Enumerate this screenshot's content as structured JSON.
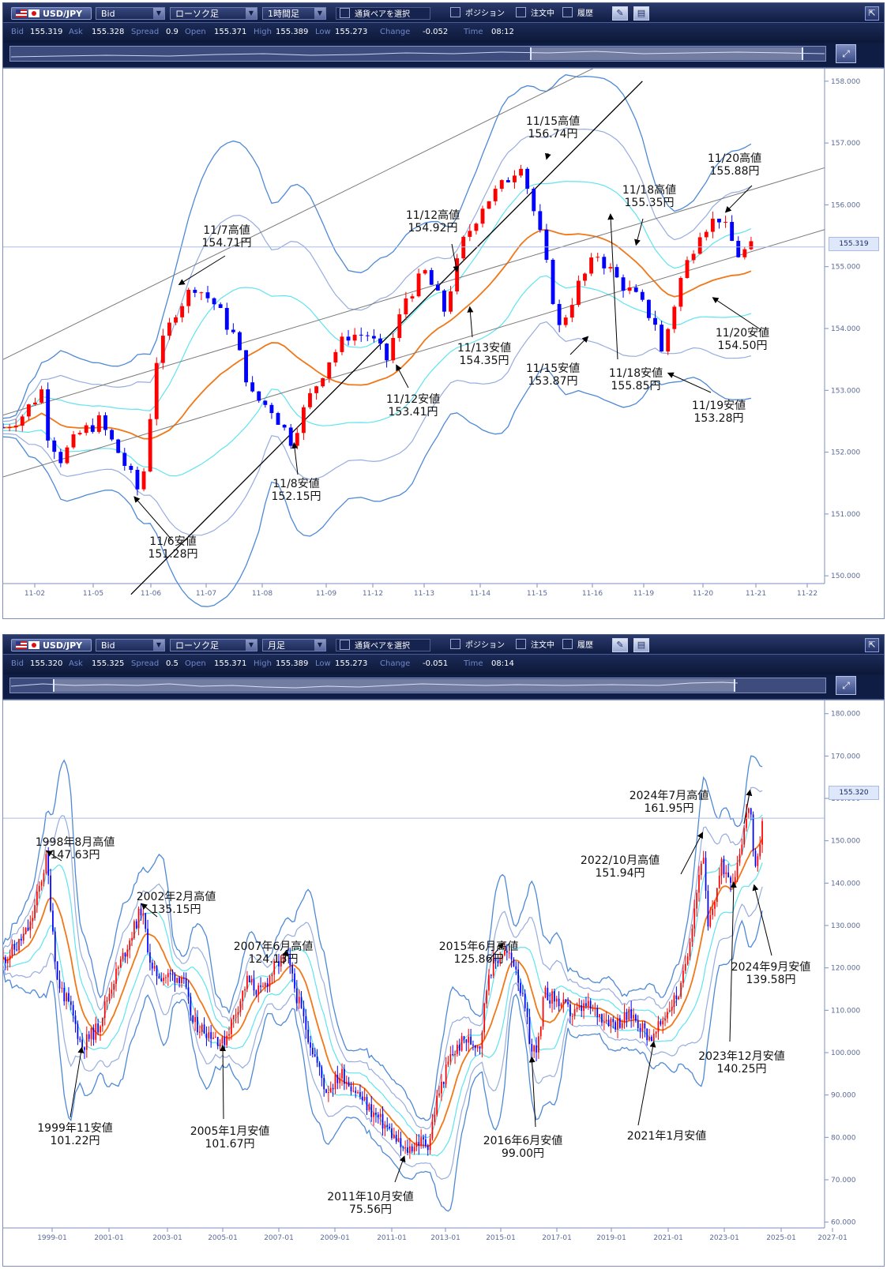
{
  "colors": {
    "toolbar_bg": "#0f1c44",
    "label": "#6f86c9",
    "value": "#ffffff",
    "candle_up": "#ff0000",
    "candle_down": "#0000ff",
    "ma": "#f07818",
    "band1": "#5ee4f0",
    "band2": "#97acdf",
    "band3": "#4e89d6",
    "trendline": "#000000",
    "channel": "#7a7a7a",
    "price_line": "#a7bde8"
  },
  "icons": {
    "pair_flag": "us-flag-icon",
    "quote_flag": "jp-flag-icon",
    "dropdown": "chevron-down-icon",
    "draw": "draw-line-icon",
    "layout": "window-layout-icon",
    "collapse": "collapse-arrow-icon",
    "zoom": "zoom-arrows-icon"
  },
  "panels": [
    {
      "toolbar": {
        "pair": "USD/JPY",
        "side": "Bid",
        "chart_type": "ローソク足",
        "timeframe": "1時間足",
        "pair_select": "通貨ペアを選択",
        "positions": "ポジション",
        "orders": "注文中",
        "history": "履歴"
      },
      "info": {
        "bid_label": "Bid",
        "bid": "155.319",
        "ask_label": "Ask",
        "ask": "155.328",
        "spread_label": "Spread",
        "spread": "0.9",
        "open_label": "Open",
        "open": "155.371",
        "high_label": "High",
        "high": "155.389",
        "low_label": "Low",
        "low": "155.273",
        "change_label": "Change",
        "change": "-0.052",
        "time_label": "Time",
        "time": "08:12"
      },
      "current_price_label": "155.319",
      "chart_data": {
        "type": "candlestick",
        "interval": "1 hour",
        "ylim": [
          149.9,
          158.1
        ],
        "yticks": [
          "158.000",
          "157.000",
          "156.000",
          "155.000",
          "154.000",
          "153.000",
          "152.000",
          "151.000",
          "150.000"
        ],
        "xticks": [
          "11-02",
          "11-05",
          "11-06",
          "11-07",
          "11-08",
          "11-09",
          "11-12",
          "11-13",
          "11-14",
          "11-15",
          "11-16",
          "11-19",
          "11-20",
          "11-21",
          "11-22"
        ],
        "current_price": 155.319,
        "path": [
          [
            0,
            152.4
          ],
          [
            3,
            152.6
          ],
          [
            6,
            153.0
          ],
          [
            7,
            152.3
          ],
          [
            9,
            151.9
          ],
          [
            12,
            152.3
          ],
          [
            15,
            152.5
          ],
          [
            18,
            152.0
          ],
          [
            21,
            151.4
          ],
          [
            22,
            151.7
          ],
          [
            24,
            153.5
          ],
          [
            27,
            154.3
          ],
          [
            30,
            154.7
          ],
          [
            33,
            154.4
          ],
          [
            36,
            153.9
          ],
          [
            39,
            152.9
          ],
          [
            42,
            152.7
          ],
          [
            45,
            152.2
          ],
          [
            48,
            152.9
          ],
          [
            51,
            153.5
          ],
          [
            54,
            153.9
          ],
          [
            57,
            153.9
          ],
          [
            60,
            153.5
          ],
          [
            63,
            154.5
          ],
          [
            66,
            154.9
          ],
          [
            69,
            154.3
          ],
          [
            72,
            155.4
          ],
          [
            75,
            156.0
          ],
          [
            78,
            156.3
          ],
          [
            81,
            156.7
          ],
          [
            84,
            155.5
          ],
          [
            87,
            154.0
          ],
          [
            90,
            154.7
          ],
          [
            93,
            155.2
          ],
          [
            96,
            154.8
          ],
          [
            99,
            154.5
          ],
          [
            102,
            154.1
          ],
          [
            103,
            153.6
          ],
          [
            106,
            154.8
          ],
          [
            109,
            155.6
          ],
          [
            112,
            155.8
          ],
          [
            115,
            155.2
          ],
          [
            117,
            155.3
          ]
        ],
        "annotations": [
          {
            "label": "11/6安値",
            "price": "151.28円",
            "value": 151.28
          },
          {
            "label": "11/7高値",
            "price": "154.71円",
            "value": 154.71
          },
          {
            "label": "11/8安値",
            "price": "152.15円",
            "value": 152.15
          },
          {
            "label": "11/12高値",
            "price": "154.92円",
            "value": 154.92
          },
          {
            "label": "11/12安値",
            "price": "153.41円",
            "value": 153.41
          },
          {
            "label": "11/13安値",
            "price": "154.35円",
            "value": 154.35
          },
          {
            "label": "11/15高値",
            "price": "156.74円",
            "value": 156.74
          },
          {
            "label": "11/15安値",
            "price": "153.87円",
            "value": 153.87
          },
          {
            "label": "11/18高値",
            "price": "155.35円",
            "value": 155.35
          },
          {
            "label": "11/18安値",
            "price": "155.85円",
            "value": 155.85
          },
          {
            "label": "11/19安値",
            "price": "153.28円",
            "value": 153.28
          },
          {
            "label": "11/20高値",
            "price": "155.88円",
            "value": 155.88
          },
          {
            "label": "11/20安値",
            "price": "154.50円",
            "value": 154.5
          }
        ]
      }
    },
    {
      "toolbar": {
        "pair": "USD/JPY",
        "side": "Bid",
        "chart_type": "ローソク足",
        "timeframe": "月足",
        "pair_select": "通貨ペアを選択",
        "positions": "ポジション",
        "orders": "注文中",
        "history": "履歴"
      },
      "info": {
        "bid_label": "Bid",
        "bid": "155.320",
        "ask_label": "Ask",
        "ask": "155.325",
        "spread_label": "Spread",
        "spread": "0.5",
        "open_label": "Open",
        "open": "155.371",
        "high_label": "High",
        "high": "155.389",
        "low_label": "Low",
        "low": "155.273",
        "change_label": "Change",
        "change": "-0.051",
        "time_label": "Time",
        "time": "08:14"
      },
      "current_price_label": "155.320",
      "chart_data": {
        "type": "candlestick",
        "interval": "1 month",
        "ylim": [
          59,
          182
        ],
        "yticks": [
          "180.000",
          "170.000",
          "160.000",
          "150.000",
          "140.000",
          "130.000",
          "120.000",
          "110.000",
          "100.000",
          "90.000",
          "80.000",
          "70.000",
          "60.000"
        ],
        "xticks": [
          "1999-01",
          "2001-01",
          "2003-01",
          "2005-01",
          "2007-01",
          "2009-01",
          "2011-01",
          "2013-01",
          "2015-01",
          "2017-01",
          "2019-01",
          "2021-01",
          "2023-01",
          "2025-01",
          "2027-01"
        ],
        "current_price": 155.32,
        "path": [
          [
            1997.0,
            122
          ],
          [
            1997.5,
            125
          ],
          [
            1998.0,
            130
          ],
          [
            1998.6,
            146
          ],
          [
            1999.0,
            117
          ],
          [
            1999.5,
            110
          ],
          [
            1999.9,
            101.5
          ],
          [
            2000.5,
            106
          ],
          [
            2001.0,
            116
          ],
          [
            2001.5,
            124
          ],
          [
            2002.1,
            134
          ],
          [
            2002.5,
            119
          ],
          [
            2003.0,
            118
          ],
          [
            2003.6,
            118
          ],
          [
            2004.0,
            107
          ],
          [
            2004.8,
            104
          ],
          [
            2005.1,
            102
          ],
          [
            2005.6,
            110
          ],
          [
            2006.0,
            117
          ],
          [
            2006.5,
            114
          ],
          [
            2007.0,
            120
          ],
          [
            2007.45,
            123
          ],
          [
            2007.8,
            114
          ],
          [
            2008.3,
            103
          ],
          [
            2008.9,
            91
          ],
          [
            2009.5,
            95
          ],
          [
            2010.0,
            91
          ],
          [
            2010.6,
            86
          ],
          [
            2011.2,
            82
          ],
          [
            2011.8,
            76.5
          ],
          [
            2012.3,
            79
          ],
          [
            2012.7,
            78.5
          ],
          [
            2013.0,
            89
          ],
          [
            2013.5,
            99
          ],
          [
            2014.0,
            103
          ],
          [
            2014.6,
            102
          ],
          [
            2014.9,
            119
          ],
          [
            2015.45,
            124
          ],
          [
            2015.9,
            121
          ],
          [
            2016.3,
            108
          ],
          [
            2016.5,
            100
          ],
          [
            2016.8,
            103
          ],
          [
            2016.95,
            114
          ],
          [
            2017.5,
            112
          ],
          [
            2018.0,
            109
          ],
          [
            2018.5,
            111
          ],
          [
            2019.0,
            109
          ],
          [
            2019.6,
            107
          ],
          [
            2020.2,
            109
          ],
          [
            2020.8,
            104
          ],
          [
            2021.0,
            103.5
          ],
          [
            2021.5,
            110
          ],
          [
            2022.0,
            115
          ],
          [
            2022.4,
            130
          ],
          [
            2022.8,
            148
          ],
          [
            2023.0,
            129
          ],
          [
            2023.5,
            144
          ],
          [
            2023.95,
            141
          ],
          [
            2024.3,
            152
          ],
          [
            2024.55,
            160
          ],
          [
            2024.7,
            142
          ],
          [
            2024.8,
            143
          ],
          [
            2025.0,
            155.3
          ]
        ],
        "annotations": [
          {
            "label": "1998年8月高値",
            "price": "147.63円",
            "value": 147.63
          },
          {
            "label": "1999年11安値",
            "price": "101.22円",
            "value": 101.22
          },
          {
            "label": "2002年2月高値",
            "price": "135.15円",
            "value": 135.15
          },
          {
            "label": "2005年1月安値",
            "price": "101.67円",
            "value": 101.67
          },
          {
            "label": "2007年6月高値",
            "price": "124.13円",
            "value": 124.13
          },
          {
            "label": "2011年10月安値",
            "price": "75.56円",
            "value": 75.56
          },
          {
            "label": "2015年6月高値",
            "price": "125.86円",
            "value": 125.86
          },
          {
            "label": "2016年6月安値",
            "price": "99.00円",
            "value": 99.0
          },
          {
            "label": "2021年1月安値",
            "price": "",
            "value": 102.6
          },
          {
            "label": "2022/10月高値",
            "price": "151.94円",
            "value": 151.94
          },
          {
            "label": "2023年12月安値",
            "price": "140.25円",
            "value": 140.25
          },
          {
            "label": "2024年7月高値",
            "price": "161.95円",
            "value": 161.95
          },
          {
            "label": "2024年9月安値",
            "price": "139.58円",
            "value": 139.58
          }
        ]
      }
    }
  ]
}
